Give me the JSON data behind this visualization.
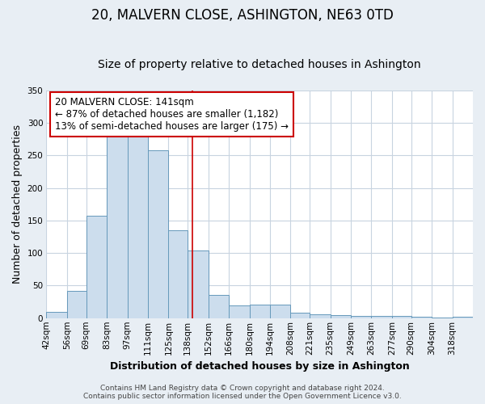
{
  "title": "20, MALVERN CLOSE, ASHINGTON, NE63 0TD",
  "subtitle": "Size of property relative to detached houses in Ashington",
  "xlabel": "Distribution of detached houses by size in Ashington",
  "ylabel": "Number of detached properties",
  "bin_labels": [
    "42sqm",
    "56sqm",
    "69sqm",
    "83sqm",
    "97sqm",
    "111sqm",
    "125sqm",
    "138sqm",
    "152sqm",
    "166sqm",
    "180sqm",
    "194sqm",
    "208sqm",
    "221sqm",
    "235sqm",
    "249sqm",
    "263sqm",
    "277sqm",
    "290sqm",
    "304sqm",
    "318sqm"
  ],
  "bar_heights": [
    10,
    42,
    157,
    281,
    281,
    258,
    135,
    104,
    36,
    19,
    21,
    21,
    8,
    6,
    5,
    4,
    3,
    3,
    2,
    1,
    2
  ],
  "bar_color": "#ccdded",
  "bar_edge_color": "#6699bb",
  "property_line_x": 141,
  "bin_edges": [
    42,
    56,
    69,
    83,
    97,
    111,
    125,
    138,
    152,
    166,
    180,
    194,
    208,
    221,
    235,
    249,
    263,
    277,
    290,
    304,
    318,
    332
  ],
  "annotation_title": "20 MALVERN CLOSE: 141sqm",
  "annotation_line1": "← 87% of detached houses are smaller (1,182)",
  "annotation_line2": "13% of semi-detached houses are larger (175) →",
  "annotation_box_facecolor": "#ffffff",
  "annotation_box_edgecolor": "#cc0000",
  "vline_color": "#cc0000",
  "ylim": [
    0,
    350
  ],
  "yticks": [
    0,
    50,
    100,
    150,
    200,
    250,
    300,
    350
  ],
  "footer1": "Contains HM Land Registry data © Crown copyright and database right 2024.",
  "footer2": "Contains public sector information licensed under the Open Government Licence v3.0.",
  "fig_facecolor": "#e8eef4",
  "plot_facecolor": "#ffffff",
  "grid_color": "#c8d4e0",
  "title_fontsize": 12,
  "subtitle_fontsize": 10,
  "axis_label_fontsize": 9,
  "tick_fontsize": 7.5,
  "annotation_fontsize": 8.5,
  "footer_fontsize": 6.5
}
